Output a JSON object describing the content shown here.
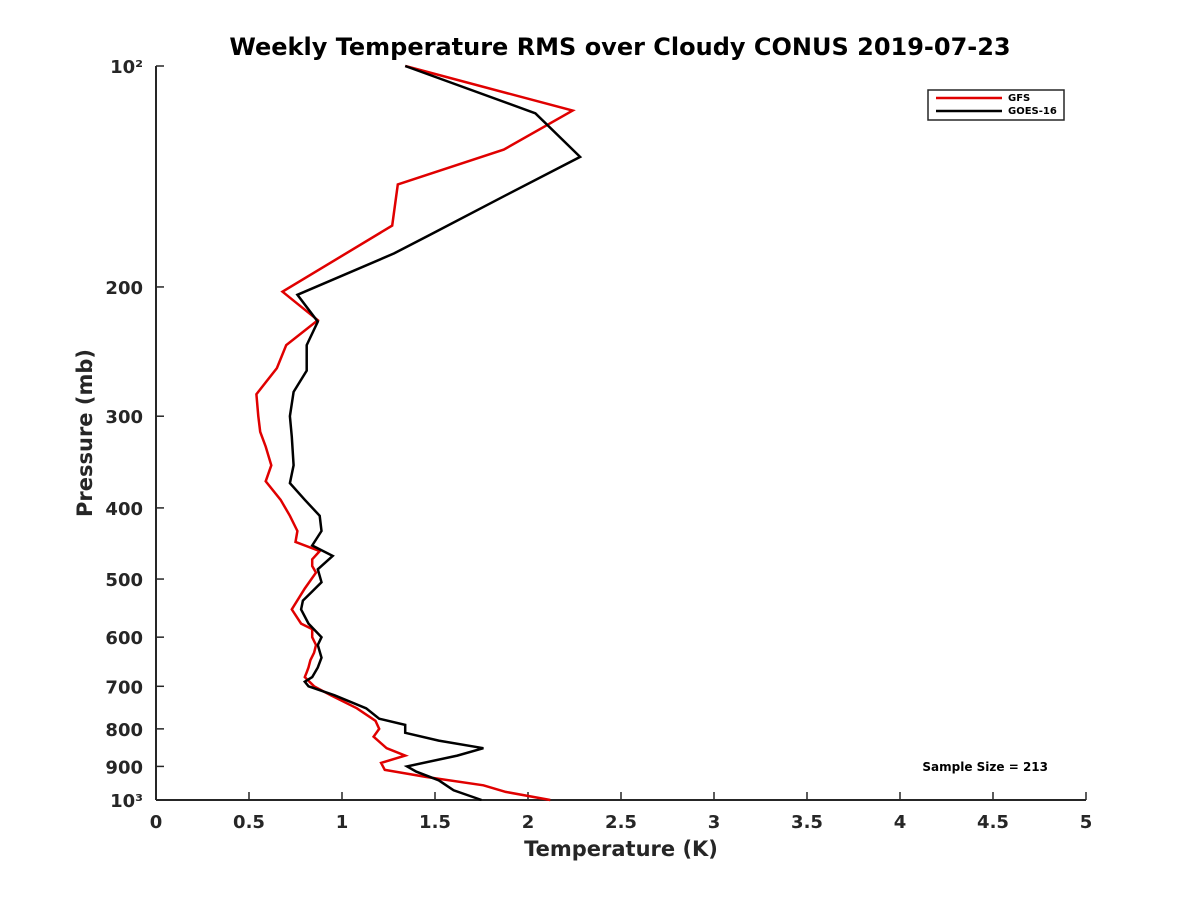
{
  "chart_data": {
    "type": "line",
    "title": "Weekly Temperature RMS over Cloudy CONUS 2019-07-23",
    "xlabel": "Temperature (K)",
    "ylabel": "Pressure (mb)",
    "xlim": [
      0,
      5
    ],
    "ylim": [
      100,
      1000
    ],
    "y_scale": "log",
    "y_reversed": true,
    "x_ticks": [
      0,
      0.5,
      1,
      1.5,
      2,
      2.5,
      3,
      3.5,
      4,
      4.5,
      5
    ],
    "x_tick_labels": [
      "0",
      "0.5",
      "1",
      "1.5",
      "2",
      "2.5",
      "3",
      "3.5",
      "4",
      "4.5",
      "5"
    ],
    "y_ticks": [
      100,
      200,
      300,
      400,
      500,
      600,
      700,
      800,
      900,
      1000
    ],
    "y_tick_labels": [
      "10²",
      "200",
      "300",
      "400",
      "500",
      "600",
      "700",
      "800",
      "900",
      "10³"
    ],
    "grid": false,
    "legend_position": "top-right",
    "annotation": "Sample Size = 213",
    "series": [
      {
        "name": "GFS",
        "color": "#e00000",
        "x": [
          1.34,
          2.24,
          1.87,
          1.3,
          1.27,
          0.68,
          0.87,
          0.7,
          0.65,
          0.54,
          0.55,
          0.56,
          0.59,
          0.62,
          0.59,
          0.67,
          0.72,
          0.76,
          0.75,
          0.88,
          0.84,
          0.84,
          0.86,
          0.8,
          0.73,
          0.78,
          0.84,
          0.84,
          0.86,
          0.85,
          0.83,
          0.82,
          0.81,
          0.8,
          0.85,
          0.94,
          1.08,
          1.18,
          1.2,
          1.17,
          1.24,
          1.34,
          1.21,
          1.23,
          1.45,
          1.76,
          1.88,
          2.12
        ],
        "y": [
          100,
          115,
          130,
          145,
          165,
          203,
          222,
          240,
          258,
          280,
          300,
          315,
          330,
          350,
          368,
          390,
          410,
          430,
          445,
          458,
          470,
          480,
          490,
          515,
          550,
          575,
          585,
          600,
          615,
          630,
          645,
          660,
          670,
          680,
          700,
          720,
          750,
          780,
          800,
          820,
          850,
          870,
          890,
          910,
          930,
          955,
          975,
          1000
        ]
      },
      {
        "name": "GOES-16",
        "color": "#000000",
        "x": [
          1.34,
          2.04,
          2.28,
          1.88,
          1.47,
          1.28,
          0.76,
          0.87,
          0.81,
          0.81,
          0.74,
          0.72,
          0.73,
          0.74,
          0.72,
          0.8,
          0.88,
          0.89,
          0.84,
          0.95,
          0.87,
          0.89,
          0.84,
          0.79,
          0.78,
          0.82,
          0.89,
          0.87,
          0.89,
          0.87,
          0.84,
          0.8,
          0.82,
          0.96,
          1.13,
          1.2,
          1.34,
          1.34,
          1.52,
          1.76,
          1.62,
          1.35,
          1.4,
          1.52,
          1.6,
          1.75
        ],
        "y": [
          100,
          116,
          133,
          150,
          170,
          180,
          205,
          223,
          240,
          260,
          278,
          300,
          320,
          350,
          370,
          390,
          410,
          430,
          450,
          465,
          485,
          505,
          520,
          535,
          550,
          575,
          600,
          615,
          640,
          660,
          680,
          690,
          700,
          720,
          750,
          775,
          790,
          810,
          830,
          850,
          870,
          900,
          915,
          940,
          970,
          1000
        ]
      }
    ]
  }
}
